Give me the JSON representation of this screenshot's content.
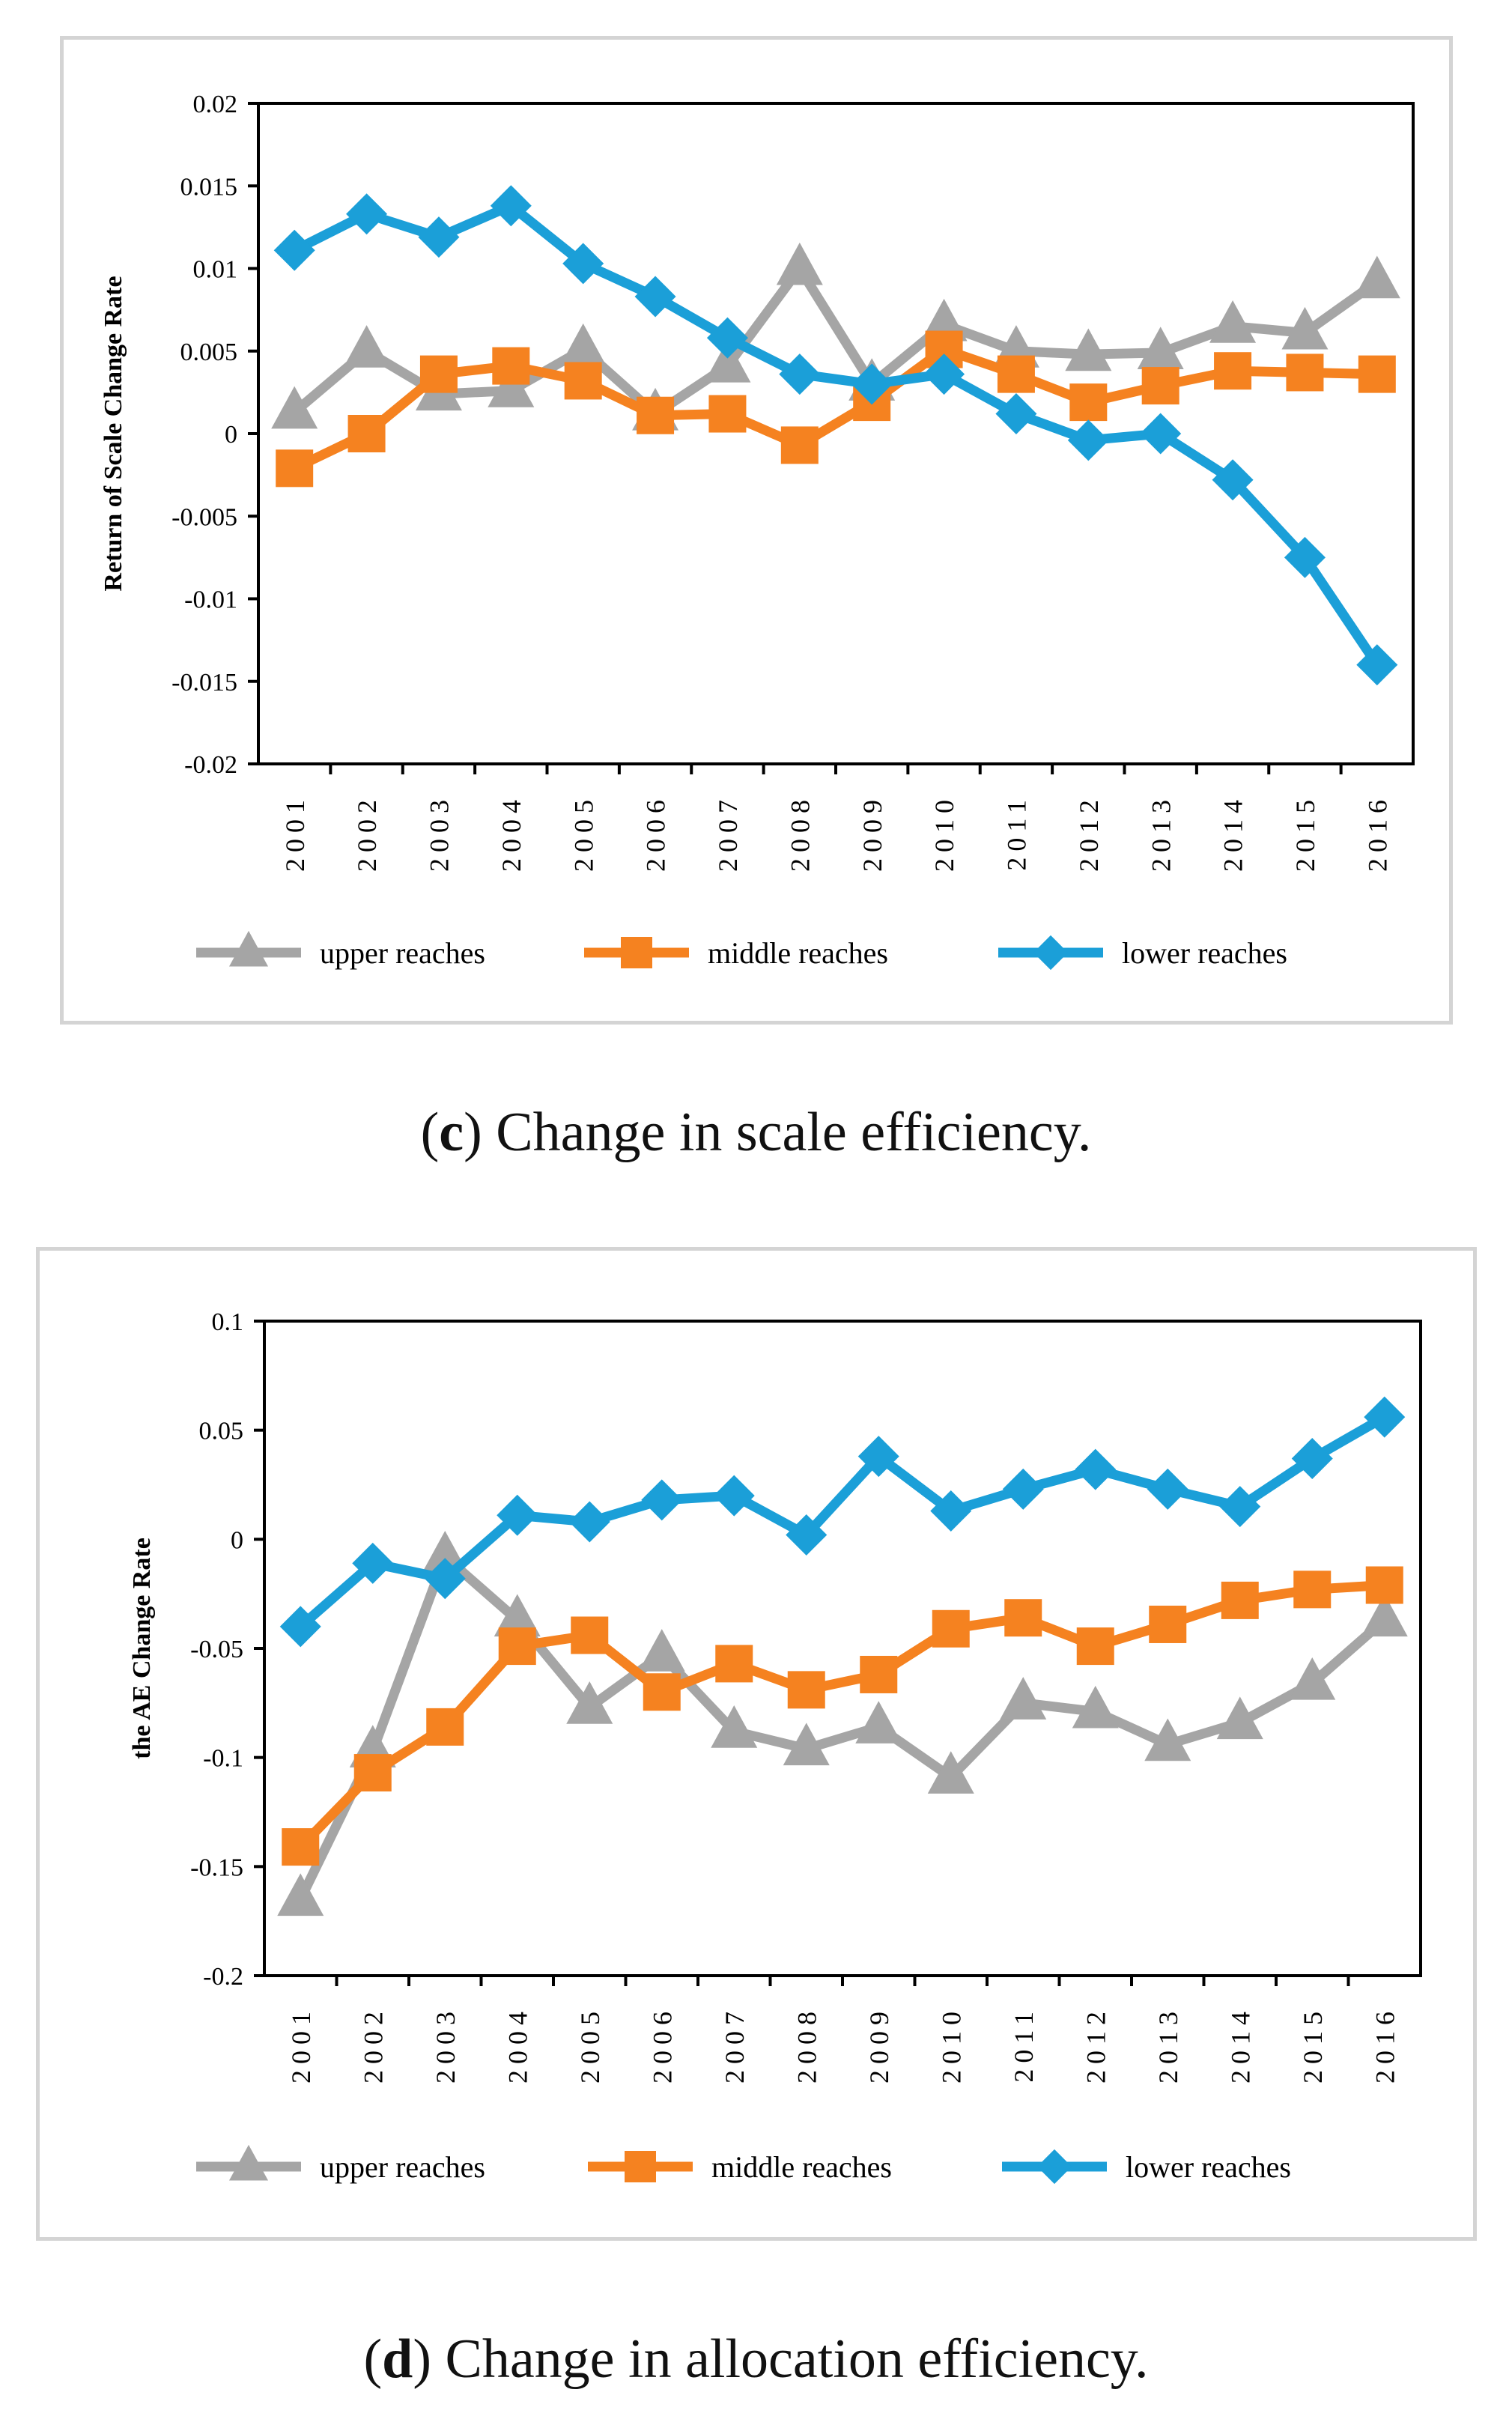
{
  "colors": {
    "upper": "#a5a5a5",
    "middle": "#f58220",
    "lower": "#1b9fd8",
    "axis": "#000000",
    "frame": "#d4d4d4"
  },
  "captions": {
    "c": {
      "letter": "c",
      "text": "Change in scale efficiency."
    },
    "d": {
      "letter": "d",
      "text": "Change in allocation efficiency."
    }
  },
  "chart_data": [
    {
      "id": "c",
      "type": "line",
      "title": "",
      "xlabel": "",
      "ylabel": "Return of Scale Change Rate",
      "x": [
        "2001",
        "2002",
        "2003",
        "2004",
        "2005",
        "2006",
        "2007",
        "2008",
        "2009",
        "2010",
        "2011",
        "2012",
        "2013",
        "2014",
        "2015",
        "2016"
      ],
      "ylim": [
        -0.02,
        0.02
      ],
      "yticks": [
        0.02,
        0.015,
        0.01,
        0.005,
        0,
        -0.005,
        -0.01,
        -0.015,
        -0.02
      ],
      "ytick_labels": [
        "0.02",
        "0.015",
        "0.01",
        "0.005",
        "0",
        "-0.005",
        "-0.01",
        "-0.015",
        "-0.02"
      ],
      "grid": false,
      "legend": "bottom",
      "series": [
        {
          "name": "upper reaches",
          "color": "#a5a5a5",
          "marker": "triangle",
          "values": [
            0.0013,
            0.005,
            0.0024,
            0.0026,
            0.0051,
            0.0012,
            0.0041,
            0.01,
            0.003,
            0.0066,
            0.005,
            0.0048,
            0.0049,
            0.0065,
            0.0061,
            0.0092
          ]
        },
        {
          "name": "middle reaches",
          "color": "#f58220",
          "marker": "square",
          "values": [
            -0.0021,
            0.0,
            0.0036,
            0.0041,
            0.0032,
            0.0011,
            0.0012,
            -0.0007,
            0.0019,
            0.0051,
            0.0036,
            0.0019,
            0.0029,
            0.0038,
            0.0037,
            0.0036
          ]
        },
        {
          "name": "lower reaches",
          "color": "#1b9fd8",
          "marker": "diamond",
          "values": [
            0.0111,
            0.0133,
            0.0119,
            0.0138,
            0.0103,
            0.0083,
            0.0058,
            0.0036,
            0.003,
            0.0036,
            0.0012,
            -0.0004,
            0.0,
            -0.0028,
            -0.0075,
            -0.014
          ]
        }
      ]
    },
    {
      "id": "d",
      "type": "line",
      "title": "",
      "xlabel": "",
      "ylabel": "the  AE Change Rate",
      "x": [
        "2001",
        "2002",
        "2003",
        "2004",
        "2005",
        "2006",
        "2007",
        "2008",
        "2009",
        "2010",
        "2011",
        "2012",
        "2013",
        "2014",
        "2015",
        "2016"
      ],
      "ylim": [
        -0.2,
        0.1
      ],
      "yticks": [
        0.1,
        0.05,
        0,
        -0.05,
        -0.1,
        -0.15,
        -0.2
      ],
      "ytick_labels": [
        "0.1",
        "0.05",
        "0",
        "-0.05",
        "-0.1",
        "-0.15",
        "-0.2"
      ],
      "grid": false,
      "legend": "bottom",
      "series": [
        {
          "name": "upper reaches",
          "color": "#a5a5a5",
          "marker": "triangle",
          "values": [
            -0.165,
            -0.097,
            -0.008,
            -0.037,
            -0.077,
            -0.053,
            -0.088,
            -0.096,
            -0.086,
            -0.109,
            -0.075,
            -0.079,
            -0.094,
            -0.084,
            -0.066,
            -0.037
          ]
        },
        {
          "name": "middle reaches",
          "color": "#f58220",
          "marker": "square",
          "values": [
            -0.141,
            -0.107,
            -0.086,
            -0.049,
            -0.044,
            -0.07,
            -0.057,
            -0.069,
            -0.062,
            -0.041,
            -0.036,
            -0.049,
            -0.039,
            -0.028,
            -0.023,
            -0.021
          ]
        },
        {
          "name": "lower reaches",
          "color": "#1b9fd8",
          "marker": "diamond",
          "values": [
            -0.04,
            -0.011,
            -0.018,
            0.011,
            0.008,
            0.018,
            0.02,
            0.002,
            0.038,
            0.013,
            0.023,
            0.032,
            0.023,
            0.015,
            0.037,
            0.056
          ]
        }
      ]
    }
  ]
}
